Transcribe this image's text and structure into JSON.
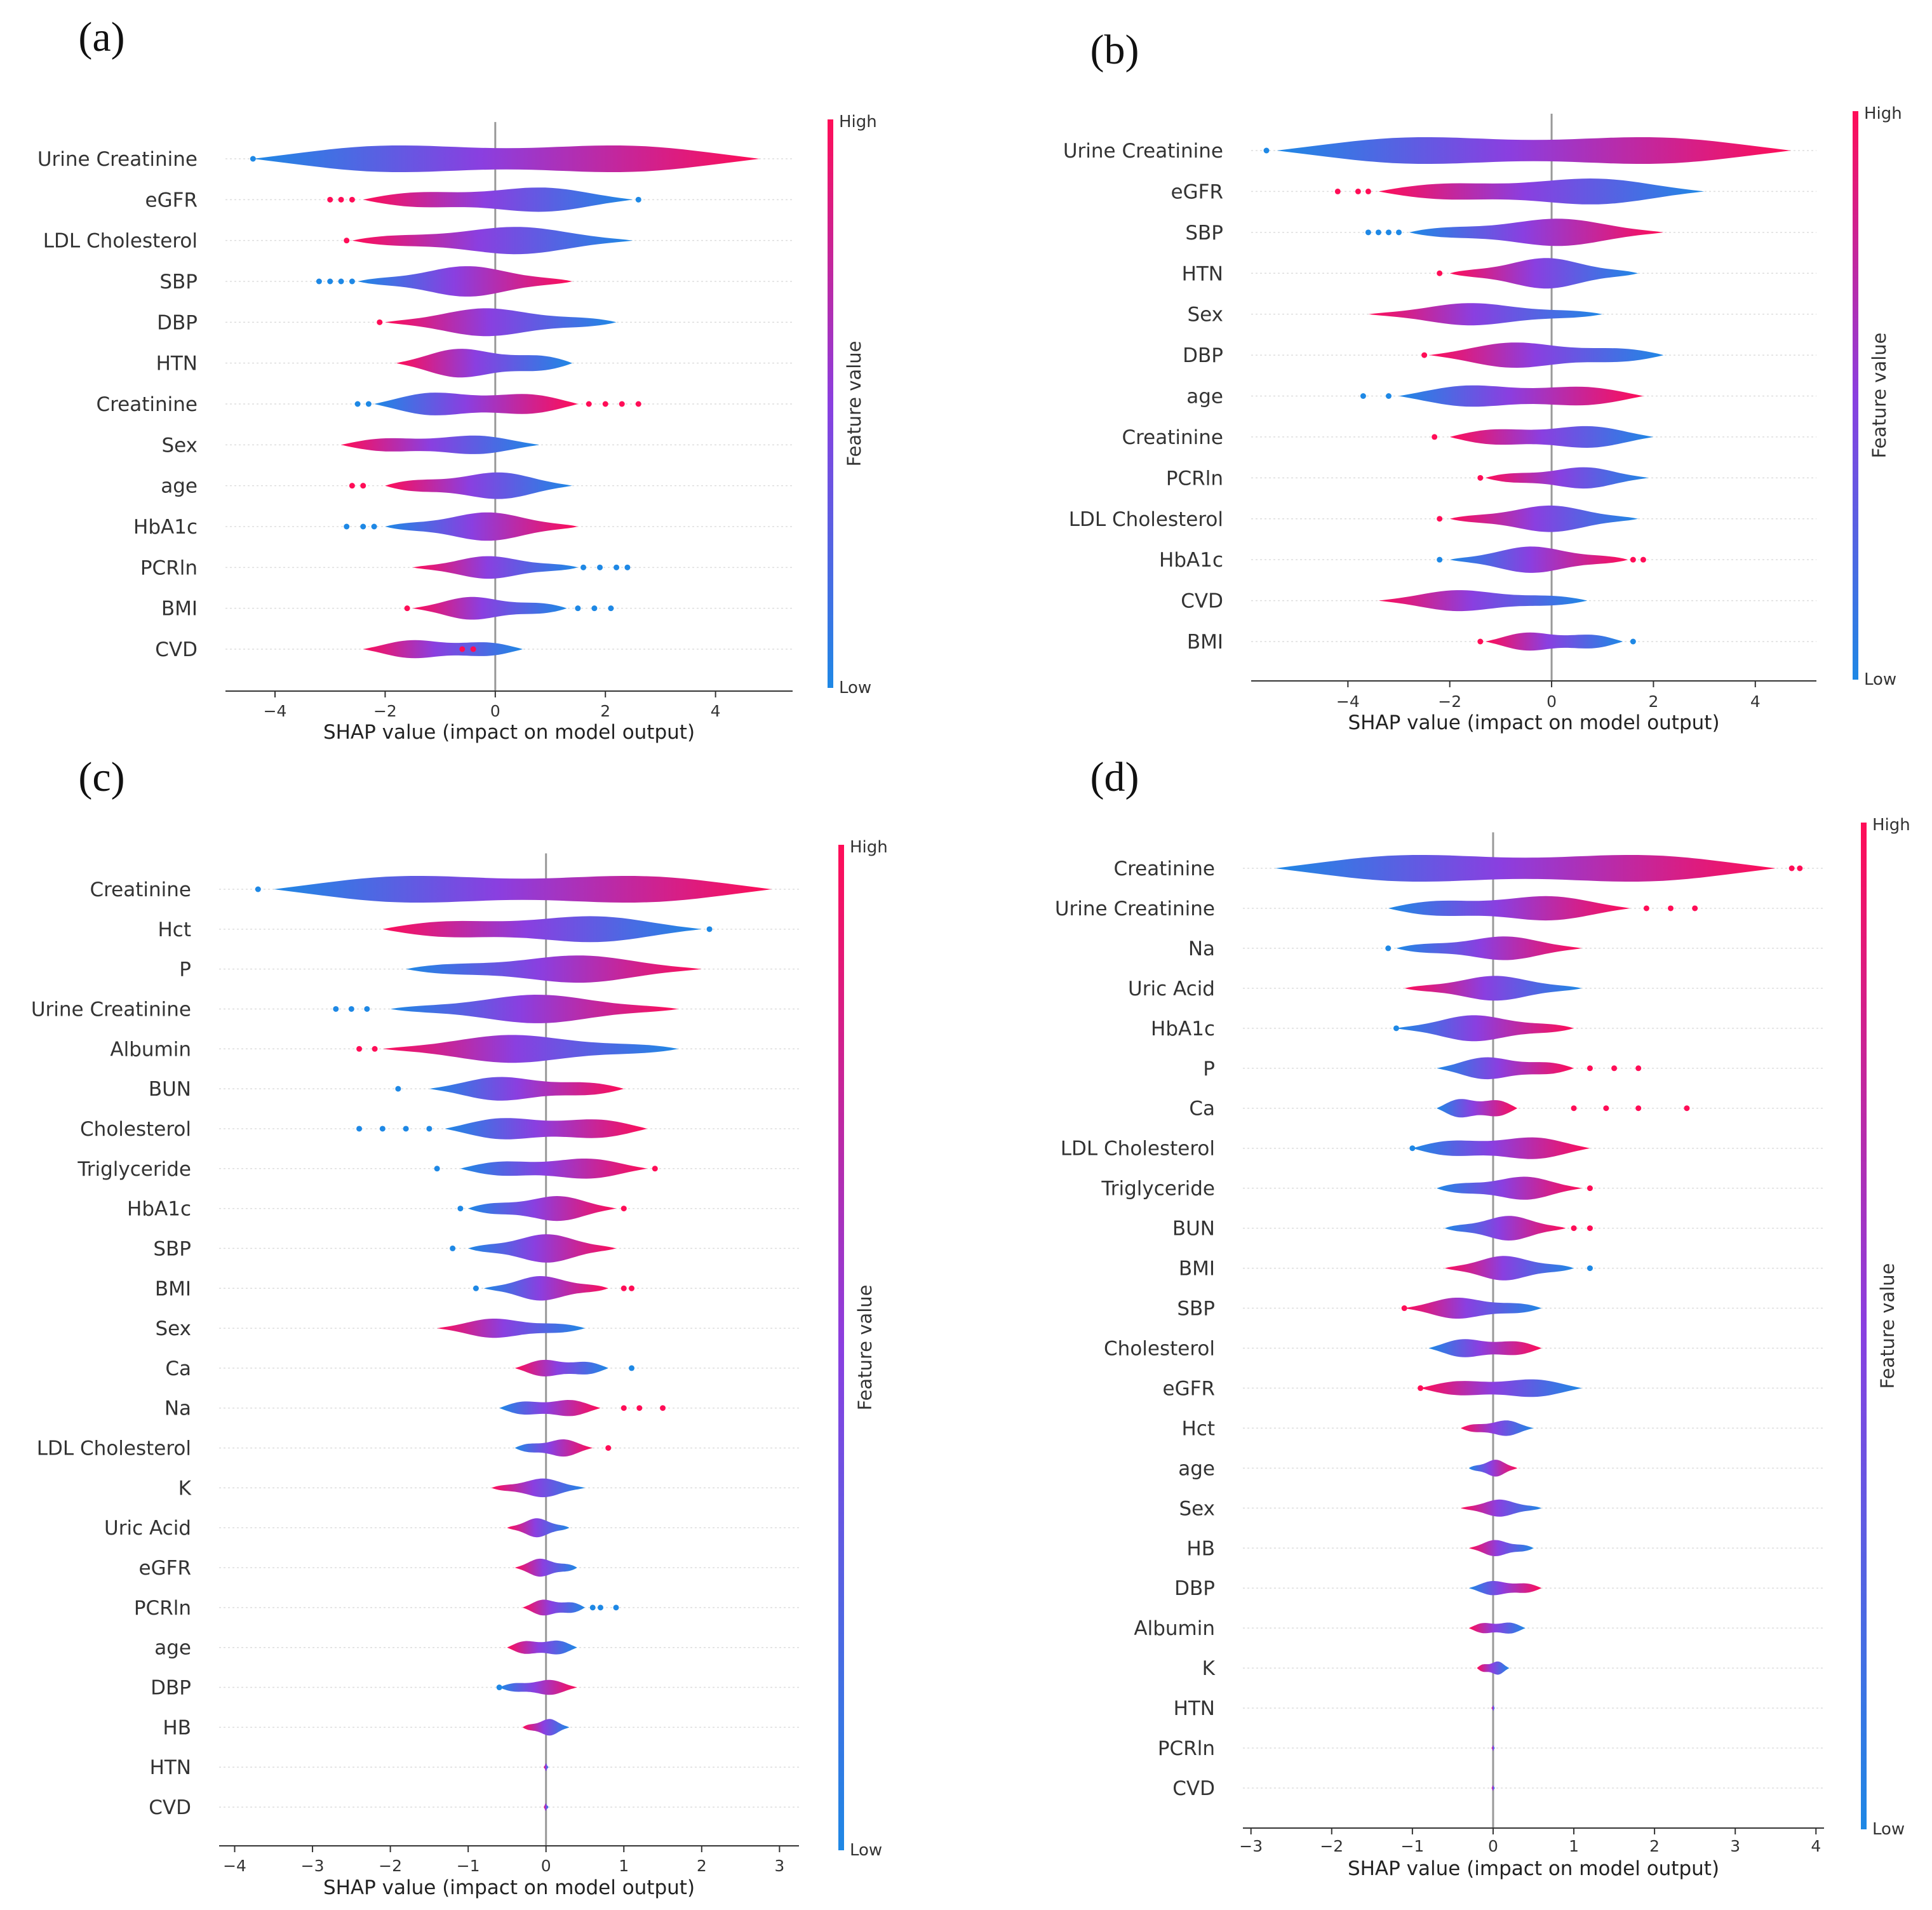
{
  "colors": {
    "low": "#1e88e5",
    "mid": "#8a3fe0",
    "high": "#ff0d57",
    "axis": "#333333",
    "zero": "#999999",
    "grid": "#dddddd"
  },
  "colorbar": {
    "high_label": "High",
    "low_label": "Low",
    "title": "Feature value"
  },
  "chart_data": [
    {
      "type": "violin",
      "panel": "(a)",
      "xlabel": "SHAP value (impact on model output)",
      "xlim": [
        -4.9,
        5.4
      ],
      "xticks": [
        -4,
        -2,
        0,
        2,
        4
      ],
      "features": [
        {
          "name": "Urine Creatinine",
          "min": -4.4,
          "max": 4.8,
          "dots_left": [
            -4.4
          ],
          "dots_right": [],
          "width": 1.0,
          "lowside": "left"
        },
        {
          "name": "eGFR",
          "min": -2.4,
          "max": 2.5,
          "dots_left": [
            -3.0,
            -2.8,
            -2.6
          ],
          "dots_right": [
            2.6
          ],
          "width": 0.75,
          "lowside": "right"
        },
        {
          "name": "LDL Cholesterol",
          "min": -2.6,
          "max": 2.5,
          "dots_left": [
            -2.7
          ],
          "dots_right": [],
          "width": 0.75,
          "lowside": "right"
        },
        {
          "name": "SBP",
          "min": -2.5,
          "max": 1.4,
          "dots_left": [
            -3.2,
            -3.0,
            -2.8,
            -2.6
          ],
          "dots_right": [],
          "width": 0.8,
          "lowside": "left"
        },
        {
          "name": "DBP",
          "min": -2.0,
          "max": 2.2,
          "dots_left": [
            -2.1
          ],
          "dots_right": [],
          "width": 0.75,
          "lowside": "right"
        },
        {
          "name": "HTN",
          "min": -1.8,
          "max": 1.4,
          "dots_left": [],
          "dots_right": [],
          "width": 0.85,
          "lowside": "right"
        },
        {
          "name": "Creatinine",
          "min": -2.2,
          "max": 1.5,
          "dots_left": [
            -2.5,
            -2.3
          ],
          "dots_right": [
            1.7,
            2.0,
            2.3,
            2.6
          ],
          "width": 0.8,
          "lowside": "left"
        },
        {
          "name": "Sex",
          "min": -2.8,
          "max": 0.8,
          "dots_left": [],
          "dots_right": [],
          "width": 0.6,
          "lowside": "right"
        },
        {
          "name": "age",
          "min": -2.0,
          "max": 1.4,
          "dots_left": [
            -2.6,
            -2.4
          ],
          "dots_right": [],
          "width": 0.75,
          "lowside": "right"
        },
        {
          "name": "HbA1c",
          "min": -2.0,
          "max": 1.5,
          "dots_left": [
            -2.7,
            -2.4,
            -2.2
          ],
          "dots_right": [],
          "width": 0.75,
          "lowside": "left"
        },
        {
          "name": "PCRln",
          "min": -1.5,
          "max": 1.5,
          "dots_left": [],
          "dots_right": [
            1.6,
            1.9,
            2.2,
            2.4
          ],
          "width": 0.6,
          "lowside": "right"
        },
        {
          "name": "BMI",
          "min": -1.5,
          "max": 1.3,
          "dots_left": [
            -1.6
          ],
          "dots_right": [
            1.5,
            1.8,
            2.1
          ],
          "width": 0.65,
          "lowside": "right"
        },
        {
          "name": "CVD",
          "min": -2.4,
          "max": 0.5,
          "dots_left": [
            -0.6,
            -0.4
          ],
          "dots_right": [],
          "width": 0.6,
          "lowside": "right"
        }
      ]
    },
    {
      "type": "violin",
      "panel": "(b)",
      "xlabel": "SHAP value (impact on model output)",
      "xlim": [
        -5.9,
        5.2
      ],
      "xticks": [
        -4,
        -2,
        0,
        2,
        4
      ],
      "features": [
        {
          "name": "Urine Creatinine",
          "min": -5.4,
          "max": 4.7,
          "dots_left": [
            -5.6
          ],
          "dots_right": [],
          "width": 1.0,
          "lowside": "left"
        },
        {
          "name": "eGFR",
          "min": -3.4,
          "max": 3.0,
          "dots_left": [
            -4.2,
            -3.8,
            -3.6
          ],
          "dots_right": [],
          "width": 0.8,
          "lowside": "right"
        },
        {
          "name": "SBP",
          "min": -2.8,
          "max": 2.2,
          "dots_left": [
            -3.6,
            -3.4,
            -3.2,
            -3.0
          ],
          "dots_right": [],
          "width": 0.75,
          "lowside": "left"
        },
        {
          "name": "HTN",
          "min": -2.0,
          "max": 1.7,
          "dots_left": [
            -2.2
          ],
          "dots_right": [],
          "width": 0.8,
          "lowside": "right"
        },
        {
          "name": "Sex",
          "min": -3.6,
          "max": 1.0,
          "dots_left": [],
          "dots_right": [],
          "width": 0.6,
          "lowside": "right"
        },
        {
          "name": "DBP",
          "min": -2.4,
          "max": 2.2,
          "dots_left": [
            -2.5
          ],
          "dots_right": [],
          "width": 0.75,
          "lowside": "right"
        },
        {
          "name": "age",
          "min": -3.0,
          "max": 1.8,
          "dots_left": [
            -3.7,
            -3.2
          ],
          "dots_right": [],
          "width": 0.75,
          "lowside": "left"
        },
        {
          "name": "Creatinine",
          "min": -2.0,
          "max": 2.0,
          "dots_left": [
            -2.3
          ],
          "dots_right": [],
          "width": 0.7,
          "lowside": "right"
        },
        {
          "name": "PCRln",
          "min": -1.3,
          "max": 1.9,
          "dots_left": [
            -1.4
          ],
          "dots_right": [],
          "width": 0.6,
          "lowside": "right"
        },
        {
          "name": "LDL Cholesterol",
          "min": -2.0,
          "max": 1.7,
          "dots_left": [
            -2.2
          ],
          "dots_right": [],
          "width": 0.7,
          "lowside": "right"
        },
        {
          "name": "HbA1c",
          "min": -2.0,
          "max": 1.5,
          "dots_left": [
            -2.2
          ],
          "dots_right": [
            1.6,
            1.8
          ],
          "width": 0.7,
          "lowside": "left"
        },
        {
          "name": "CVD",
          "min": -3.4,
          "max": 0.7,
          "dots_left": [],
          "dots_right": [],
          "width": 0.6,
          "lowside": "right"
        },
        {
          "name": "BMI",
          "min": -1.3,
          "max": 1.4,
          "dots_left": [
            -1.4
          ],
          "dots_right": [
            1.6
          ],
          "width": 0.6,
          "lowside": "right"
        }
      ]
    },
    {
      "type": "violin",
      "panel": "(c)",
      "xlabel": "SHAP value (impact on model output)",
      "xlim": [
        -4.2,
        3.25
      ],
      "xticks": [
        -4,
        -3,
        -2,
        -1,
        0,
        1,
        2,
        3
      ],
      "features": [
        {
          "name": "Creatinine",
          "min": -3.5,
          "max": 2.9,
          "dots_left": [
            -3.7
          ],
          "dots_right": [],
          "width": 1.0,
          "lowside": "left"
        },
        {
          "name": "Hct",
          "min": -2.1,
          "max": 2.0,
          "dots_left": [],
          "dots_right": [
            2.1
          ],
          "width": 0.8,
          "lowside": "right"
        },
        {
          "name": "P",
          "min": -1.8,
          "max": 2.0,
          "dots_left": [],
          "dots_right": [],
          "width": 0.75,
          "lowside": "left"
        },
        {
          "name": "Urine Creatinine",
          "min": -2.0,
          "max": 1.7,
          "dots_left": [
            -2.7,
            -2.5,
            -2.3
          ],
          "dots_right": [],
          "width": 0.75,
          "lowside": "left"
        },
        {
          "name": "Albumin",
          "min": -2.1,
          "max": 1.7,
          "dots_left": [
            -2.4,
            -2.2
          ],
          "dots_right": [],
          "width": 0.75,
          "lowside": "right"
        },
        {
          "name": "BUN",
          "min": -1.5,
          "max": 1.0,
          "dots_left": [
            -1.9
          ],
          "dots_right": [],
          "width": 0.7,
          "lowside": "left"
        },
        {
          "name": "Cholesterol",
          "min": -1.3,
          "max": 1.3,
          "dots_left": [
            -2.4,
            -2.1,
            -1.8,
            -1.5
          ],
          "dots_right": [],
          "width": 0.75,
          "lowside": "left"
        },
        {
          "name": "Triglyceride",
          "min": -1.1,
          "max": 1.3,
          "dots_left": [
            -1.4
          ],
          "dots_right": [
            1.4
          ],
          "width": 0.65,
          "lowside": "left"
        },
        {
          "name": "HbA1c",
          "min": -1.0,
          "max": 0.9,
          "dots_left": [
            -1.1
          ],
          "dots_right": [
            1.0
          ],
          "width": 0.7,
          "lowside": "left"
        },
        {
          "name": "SBP",
          "min": -1.0,
          "max": 0.9,
          "dots_left": [
            -1.2
          ],
          "dots_right": [],
          "width": 0.75,
          "lowside": "left"
        },
        {
          "name": "BMI",
          "min": -0.8,
          "max": 0.8,
          "dots_left": [
            -0.9
          ],
          "dots_right": [
            1.0,
            1.1
          ],
          "width": 0.65,
          "lowside": "left"
        },
        {
          "name": "Sex",
          "min": -1.4,
          "max": 0.5,
          "dots_left": [],
          "dots_right": [],
          "width": 0.55,
          "lowside": "right"
        },
        {
          "name": "Ca",
          "min": -0.4,
          "max": 0.8,
          "dots_left": [],
          "dots_right": [
            1.1
          ],
          "width": 0.55,
          "lowside": "right"
        },
        {
          "name": "Na",
          "min": -0.6,
          "max": 0.7,
          "dots_left": [],
          "dots_right": [
            1.0,
            1.2,
            1.5
          ],
          "width": 0.55,
          "lowside": "left"
        },
        {
          "name": "LDL Cholesterol",
          "min": -0.4,
          "max": 0.6,
          "dots_left": [],
          "dots_right": [
            0.8
          ],
          "width": 0.5,
          "lowside": "left"
        },
        {
          "name": "K",
          "min": -0.7,
          "max": 0.5,
          "dots_left": [],
          "dots_right": [],
          "width": 0.5,
          "lowside": "right"
        },
        {
          "name": "Uric Acid",
          "min": -0.5,
          "max": 0.3,
          "dots_left": [],
          "dots_right": [],
          "width": 0.5,
          "lowside": "right"
        },
        {
          "name": "eGFR",
          "min": -0.4,
          "max": 0.4,
          "dots_left": [],
          "dots_right": [],
          "width": 0.5,
          "lowside": "right"
        },
        {
          "name": "PCRln",
          "min": -0.3,
          "max": 0.5,
          "dots_left": [],
          "dots_right": [
            0.6,
            0.7,
            0.9
          ],
          "width": 0.5,
          "lowside": "right"
        },
        {
          "name": "age",
          "min": -0.5,
          "max": 0.4,
          "dots_left": [],
          "dots_right": [],
          "width": 0.5,
          "lowside": "right"
        },
        {
          "name": "DBP",
          "min": -0.6,
          "max": 0.4,
          "dots_left": [
            -0.6
          ],
          "dots_right": [],
          "width": 0.45,
          "lowside": "left"
        },
        {
          "name": "HB",
          "min": -0.3,
          "max": 0.3,
          "dots_left": [],
          "dots_right": [],
          "width": 0.45,
          "lowside": "right"
        },
        {
          "name": "HTN",
          "min": -0.03,
          "max": 0.03,
          "dots_left": [],
          "dots_right": [],
          "width": 0.2,
          "lowside": "right"
        },
        {
          "name": "CVD",
          "min": -0.03,
          "max": 0.03,
          "dots_left": [],
          "dots_right": [],
          "width": 0.2,
          "lowside": "right"
        }
      ]
    },
    {
      "type": "violin",
      "panel": "(d)",
      "xlabel": "SHAP value (impact on model output)",
      "xlim": [
        -3.1,
        4.1
      ],
      "xticks": [
        -3,
        -2,
        -1,
        0,
        1,
        2,
        3,
        4
      ],
      "features": [
        {
          "name": "Creatinine",
          "min": -2.7,
          "max": 3.5,
          "dots_left": [],
          "dots_right": [
            3.7,
            3.8
          ],
          "width": 1.0,
          "lowside": "left"
        },
        {
          "name": "Urine Creatinine",
          "min": -1.3,
          "max": 1.7,
          "dots_left": [],
          "dots_right": [
            1.9,
            2.2,
            2.5
          ],
          "width": 0.75,
          "lowside": "left"
        },
        {
          "name": "Na",
          "min": -1.2,
          "max": 1.1,
          "dots_left": [
            -1.3
          ],
          "dots_right": [],
          "width": 0.65,
          "lowside": "left"
        },
        {
          "name": "Uric Acid",
          "min": -1.1,
          "max": 1.1,
          "dots_left": [],
          "dots_right": [],
          "width": 0.65,
          "lowside": "right"
        },
        {
          "name": "HbA1c",
          "min": -1.2,
          "max": 1.0,
          "dots_left": [
            -1.2
          ],
          "dots_right": [],
          "width": 0.7,
          "lowside": "left"
        },
        {
          "name": "P",
          "min": -0.7,
          "max": 1.0,
          "dots_left": [],
          "dots_right": [
            1.2,
            1.5,
            1.8
          ],
          "width": 0.65,
          "lowside": "left"
        },
        {
          "name": "Ca",
          "min": -0.7,
          "max": 0.3,
          "dots_left": [],
          "dots_right": [
            1.0,
            1.4,
            1.8,
            2.4
          ],
          "width": 0.65,
          "lowside": "left"
        },
        {
          "name": "LDL Cholesterol",
          "min": -1.0,
          "max": 1.2,
          "dots_left": [
            -1.0
          ],
          "dots_right": [],
          "width": 0.7,
          "lowside": "left"
        },
        {
          "name": "Triglyceride",
          "min": -0.7,
          "max": 1.1,
          "dots_left": [],
          "dots_right": [
            1.2
          ],
          "width": 0.65,
          "lowside": "left"
        },
        {
          "name": "BUN",
          "min": -0.6,
          "max": 0.9,
          "dots_left": [],
          "dots_right": [
            1.0,
            1.2
          ],
          "width": 0.65,
          "lowside": "left"
        },
        {
          "name": "BMI",
          "min": -0.6,
          "max": 1.0,
          "dots_left": [],
          "dots_right": [
            1.2
          ],
          "width": 0.65,
          "lowside": "right"
        },
        {
          "name": "SBP",
          "min": -1.1,
          "max": 0.6,
          "dots_left": [
            -1.1
          ],
          "dots_right": [],
          "width": 0.6,
          "lowside": "right"
        },
        {
          "name": "Cholesterol",
          "min": -0.8,
          "max": 0.6,
          "dots_left": [],
          "dots_right": [],
          "width": 0.6,
          "lowside": "left"
        },
        {
          "name": "eGFR",
          "min": -0.9,
          "max": 1.1,
          "dots_left": [
            -0.9
          ],
          "dots_right": [],
          "width": 0.6,
          "lowside": "right"
        },
        {
          "name": "Hct",
          "min": -0.4,
          "max": 0.5,
          "dots_left": [],
          "dots_right": [],
          "width": 0.45,
          "lowside": "right"
        },
        {
          "name": "age",
          "min": -0.3,
          "max": 0.3,
          "dots_left": [],
          "dots_right": [],
          "width": 0.45,
          "lowside": "left"
        },
        {
          "name": "Sex",
          "min": -0.4,
          "max": 0.6,
          "dots_left": [],
          "dots_right": [],
          "width": 0.45,
          "lowside": "right"
        },
        {
          "name": "HB",
          "min": -0.3,
          "max": 0.5,
          "dots_left": [],
          "dots_right": [],
          "width": 0.45,
          "lowside": "right"
        },
        {
          "name": "DBP",
          "min": -0.3,
          "max": 0.6,
          "dots_left": [],
          "dots_right": [],
          "width": 0.45,
          "lowside": "left"
        },
        {
          "name": "Albumin",
          "min": -0.3,
          "max": 0.4,
          "dots_left": [],
          "dots_right": [],
          "width": 0.4,
          "lowside": "right"
        },
        {
          "name": "K",
          "min": -0.2,
          "max": 0.2,
          "dots_left": [],
          "dots_right": [],
          "width": 0.4,
          "lowside": "right"
        },
        {
          "name": "HTN",
          "min": -0.02,
          "max": 0.02,
          "dots_left": [],
          "dots_right": [],
          "width": 0.15,
          "lowside": "right"
        },
        {
          "name": "PCRln",
          "min": -0.02,
          "max": 0.02,
          "dots_left": [],
          "dots_right": [],
          "width": 0.15,
          "lowside": "right"
        },
        {
          "name": "CVD",
          "min": -0.02,
          "max": 0.02,
          "dots_left": [],
          "dots_right": [],
          "width": 0.15,
          "lowside": "right"
        }
      ]
    }
  ]
}
